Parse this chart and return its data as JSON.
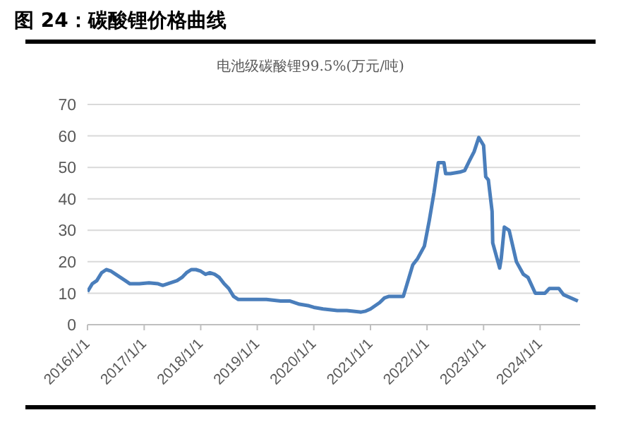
{
  "chart_data": {
    "type": "line",
    "title": "图 24：碳酸锂价格曲线",
    "subtitle": "电池级碳酸锂99.5%(万元/吨)",
    "x": [
      "2016-01-01",
      "2016-02-01",
      "2016-03-01",
      "2016-04-01",
      "2016-05-01",
      "2016-06-01",
      "2016-07-01",
      "2016-08-01",
      "2016-09-01",
      "2016-10-01",
      "2016-12-01",
      "2017-02-01",
      "2017-04-01",
      "2017-05-01",
      "2017-06-01",
      "2017-08-01",
      "2017-09-01",
      "2017-10-01",
      "2017-11-01",
      "2017-12-01",
      "2018-01-01",
      "2018-02-01",
      "2018-03-01",
      "2018-04-01",
      "2018-05-01",
      "2018-06-01",
      "2018-07-01",
      "2018-08-01",
      "2018-09-01",
      "2018-11-01",
      "2019-01-01",
      "2019-03-01",
      "2019-06-01",
      "2019-08-01",
      "2019-10-01",
      "2019-12-01",
      "2020-01-01",
      "2020-03-01",
      "2020-06-01",
      "2020-08-01",
      "2020-11-01",
      "2020-12-01",
      "2021-01-01",
      "2021-03-01",
      "2021-04-01",
      "2021-05-01",
      "2021-08-01",
      "2021-10-01",
      "2021-11-01",
      "2021-12-15",
      "2022-01-15",
      "2022-02-15",
      "2022-03-15",
      "2022-04-20",
      "2022-05-01",
      "2022-06-01",
      "2022-08-01",
      "2022-09-01",
      "2022-10-01",
      "2022-11-01",
      "2022-12-01",
      "2023-01-01",
      "2023-01-15",
      "2023-02-01",
      "2023-02-25",
      "2023-03-01",
      "2023-04-15",
      "2023-04-25",
      "2023-05-15",
      "2023-06-15",
      "2023-08-01",
      "2023-09-15",
      "2023-10-15",
      "2023-12-01",
      "2024-02-01",
      "2024-03-01",
      "2024-05-01",
      "2024-06-01",
      "2024-09-01"
    ],
    "series": [
      {
        "color": "#4a7ebb",
        "values": [
          10.5,
          13,
          14,
          16.5,
          17.5,
          17,
          16,
          15,
          14,
          13,
          13,
          13.3,
          13,
          12.5,
          13,
          14,
          15,
          16.5,
          17.5,
          17.5,
          17,
          16,
          16.5,
          16,
          15,
          13,
          11.5,
          9,
          8,
          8,
          8,
          8,
          7.5,
          7.5,
          6.5,
          6,
          5.5,
          5,
          4.5,
          4.5,
          4,
          4.3,
          5,
          7,
          8.5,
          9,
          9,
          19,
          21,
          25,
          33,
          42,
          51.5,
          51.5,
          48,
          48,
          48.5,
          49,
          52,
          55,
          59.5,
          57,
          47,
          46,
          36,
          26,
          18,
          21,
          31,
          30,
          20,
          16,
          15,
          10,
          10,
          11.5,
          11.5,
          9.5,
          7.5
        ]
      }
    ],
    "xlim": [
      "2016-01-01",
      "2024-09-15"
    ],
    "xticks": [
      {
        "value": "2016-01-01",
        "label": "2016/1/1"
      },
      {
        "value": "2017-01-01",
        "label": "2017/1/1"
      },
      {
        "value": "2018-01-01",
        "label": "2018/1/1"
      },
      {
        "value": "2019-01-01",
        "label": "2019/1/1"
      },
      {
        "value": "2020-01-01",
        "label": "2020/1/1"
      },
      {
        "value": "2021-01-01",
        "label": "2021/1/1"
      },
      {
        "value": "2022-01-01",
        "label": "2022/1/1"
      },
      {
        "value": "2023-01-01",
        "label": "2023/1/1"
      },
      {
        "value": "2024-01-01",
        "label": "2024/1/1"
      }
    ],
    "ylim": [
      0,
      70
    ],
    "yticks": [
      0,
      10,
      20,
      30,
      40,
      50,
      60,
      70
    ],
    "grid": "y",
    "legend": false,
    "marker": "none",
    "line_style": "solid"
  }
}
